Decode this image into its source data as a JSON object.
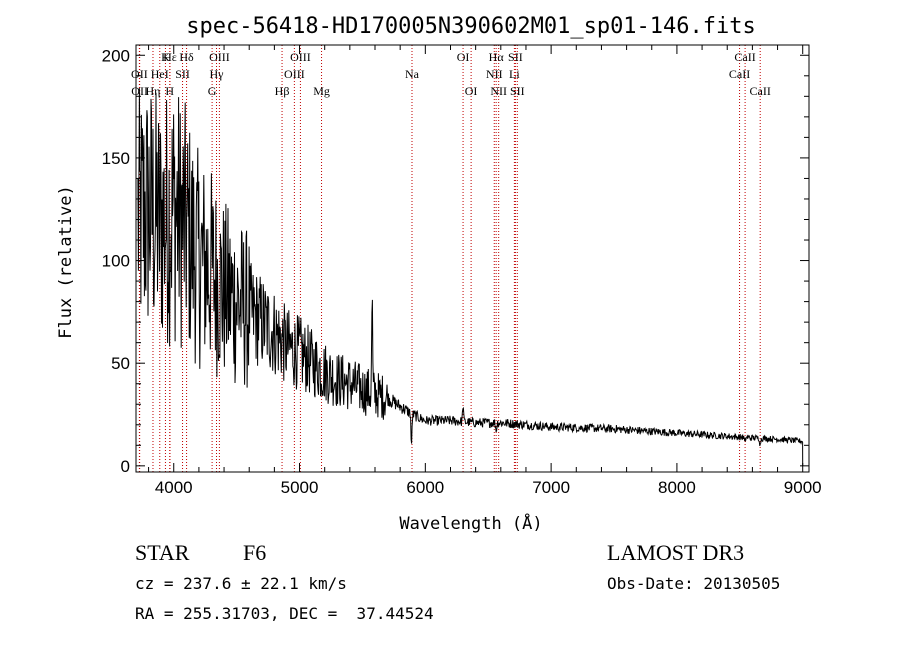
{
  "chart_data": {
    "type": "line",
    "title": "spec-56418-HD170005N390602M01_sp01-146.fits",
    "xlabel": "Wavelength (Å)",
    "ylabel": "Flux (relative)",
    "xlim": [
      3700,
      9050
    ],
    "ylim": [
      -3,
      205
    ],
    "xticks": [
      4000,
      5000,
      6000,
      7000,
      8000,
      9000
    ],
    "yticks": [
      0,
      50,
      100,
      150,
      200
    ],
    "envelope": {
      "wavelength": [
        3720,
        3800,
        3900,
        4000,
        4100,
        4200,
        4300,
        4400,
        4500,
        4600,
        4700,
        4800,
        4900,
        5000,
        5100,
        5200,
        5300,
        5400,
        5500,
        5600,
        5700,
        5800,
        5900,
        6000,
        6200,
        6400,
        6600,
        6800,
        7000,
        7500,
        8000,
        8500,
        8800,
        9000
      ],
      "flux": [
        120,
        125,
        118,
        125,
        115,
        100,
        95,
        85,
        80,
        75,
        70,
        65,
        58,
        55,
        50,
        46,
        42,
        40,
        37,
        35,
        33,
        29,
        25,
        22,
        22,
        21,
        21,
        20,
        19,
        18,
        16,
        14,
        13,
        12
      ]
    },
    "features": [
      {
        "wavelength": 5577,
        "flux": 82
      },
      {
        "wavelength": 5890,
        "flux": 8
      },
      {
        "wavelength": 6300,
        "flux": 30
      },
      {
        "wavelength": 6563,
        "flux": 17
      },
      {
        "wavelength": 8540,
        "flux": 11
      },
      {
        "wavelength": 8662,
        "flux": 10
      }
    ],
    "lines": [
      {
        "label": "Hε",
        "wavelength": 3970,
        "row": 1
      },
      {
        "label": "K",
        "wavelength": 3934,
        "row": 1
      },
      {
        "label": "Hδ",
        "wavelength": 4102,
        "row": 1
      },
      {
        "label": "OII",
        "wavelength": 3727,
        "row": 2
      },
      {
        "label": "HeI",
        "wavelength": 3889,
        "row": 2
      },
      {
        "label": "SII",
        "wavelength": 4070,
        "row": 2
      },
      {
        "label": "OII",
        "wavelength": 3729,
        "row": 3
      },
      {
        "label": "Hη",
        "wavelength": 3835,
        "row": 3
      },
      {
        "label": "H",
        "wavelength": 3968,
        "row": 3
      },
      {
        "label": "OIII",
        "wavelength": 4363,
        "row": 1
      },
      {
        "label": "Hγ",
        "wavelength": 4340,
        "row": 2
      },
      {
        "label": "G",
        "wavelength": 4305,
        "row": 3
      },
      {
        "label": "Hβ",
        "wavelength": 4861,
        "row": 3
      },
      {
        "label": "OIII",
        "wavelength": 5007,
        "row": 1
      },
      {
        "label": "OIII",
        "wavelength": 4959,
        "row": 2
      },
      {
        "label": "Mg",
        "wavelength": 5175,
        "row": 3
      },
      {
        "label": "Na",
        "wavelength": 5894,
        "row": 2
      },
      {
        "label": "OI",
        "wavelength": 6300,
        "row": 1
      },
      {
        "label": "OI",
        "wavelength": 6364,
        "row": 3
      },
      {
        "label": "Hα",
        "wavelength": 6563,
        "row": 1
      },
      {
        "label": "SII",
        "wavelength": 6716,
        "row": 1
      },
      {
        "label": "NII",
        "wavelength": 6548,
        "row": 2
      },
      {
        "label": "Li",
        "wavelength": 6708,
        "row": 2
      },
      {
        "label": "NII",
        "wavelength": 6583,
        "row": 3
      },
      {
        "label": "SII",
        "wavelength": 6731,
        "row": 3
      },
      {
        "label": "CaII",
        "wavelength": 8542,
        "row": 1
      },
      {
        "label": "CaII",
        "wavelength": 8498,
        "row": 2
      },
      {
        "label": "CaII",
        "wavelength": 8662,
        "row": 3
      }
    ]
  },
  "info": {
    "object_class": "STAR",
    "subclass": "F6",
    "survey": "LAMOST DR3",
    "redshift": "cz = 237.6 ± 22.1 km/s",
    "obs_date": "Obs-Date: 20130505",
    "coords": "RA = 255.31703, DEC =  37.44524"
  }
}
